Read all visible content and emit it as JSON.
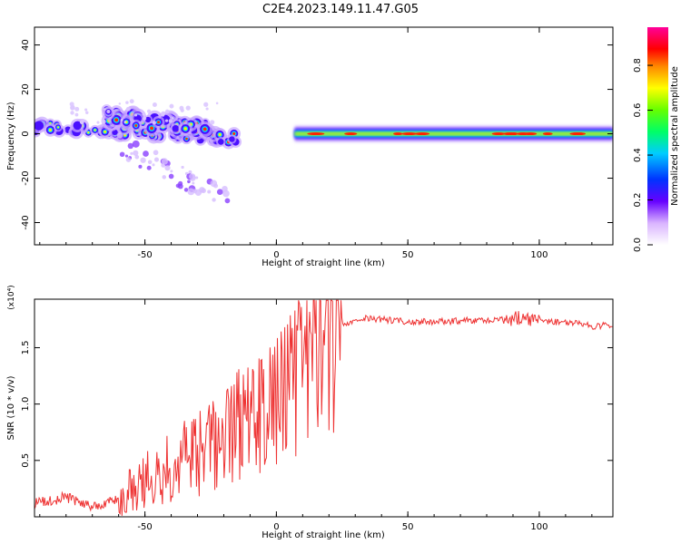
{
  "figure_title": "C2E4.2023.149.11.47.G05",
  "colors": {
    "snr_line": "#ee3333",
    "colormap": [
      "#ffffff",
      "#6600ff",
      "#0000ff",
      "#00ffff",
      "#00ff00",
      "#ffff00",
      "#ff8800",
      "#ff0000",
      "#ff0099"
    ]
  },
  "chart_data": [
    {
      "type": "heatmap",
      "title": "",
      "xlabel": "Height of straight line (km)",
      "ylabel": "Frequency (Hz)",
      "xlim": [
        -92,
        128
      ],
      "ylim": [
        -50,
        48
      ],
      "xticks": [
        -50,
        0,
        50,
        100
      ],
      "xtick_labels": [
        "-50",
        "0",
        "50",
        "100"
      ],
      "yticks": [
        -40,
        -20,
        0,
        20,
        40
      ],
      "ytick_labels": [
        "-40",
        "-20",
        "0",
        "20",
        "40"
      ],
      "colorbar": {
        "label": "Normalized spectral amplitude",
        "range": [
          0,
          0.97
        ],
        "ticks": [
          0.0,
          0.2,
          0.4,
          0.6,
          0.8
        ],
        "tick_labels": [
          "0.0",
          "0.2",
          "0.4",
          "0.6",
          "0.8"
        ]
      },
      "grid": false,
      "features": [
        {
          "name": "main-band",
          "x": [
            15,
            128
          ],
          "freq": 0,
          "amplitude": 0.8
        },
        {
          "name": "early-band",
          "x": [
            -92,
            -15
          ],
          "freq_start": 3,
          "freq_end": -2,
          "amplitude": 0.7
        },
        {
          "name": "upper-branch",
          "x": [
            -65,
            -25
          ],
          "freq_start": 8,
          "freq_end": 2,
          "amplitude": 0.75
        },
        {
          "name": "scatter-tail",
          "x": [
            -60,
            -18
          ],
          "freq_start": -5,
          "freq_end": -30,
          "amplitude": 0.25
        }
      ]
    },
    {
      "type": "line",
      "title": "",
      "xlabel": "Height of straight line (km)",
      "ylabel": "SNR (10 * v/v)",
      "y_multiplier": "(x10⁴)",
      "xlim": [
        -92,
        128
      ],
      "ylim": [
        0,
        1.93
      ],
      "xticks": [
        -50,
        0,
        50,
        100
      ],
      "xtick_labels": [
        "-50",
        "0",
        "50",
        "100"
      ],
      "yticks": [
        0.5,
        1.0,
        1.5
      ],
      "ytick_labels": [
        "0.5",
        "1.0",
        "1.5"
      ],
      "grid": false,
      "series": [
        {
          "x": [
            -92,
            -85,
            -80,
            -75,
            -70,
            -65,
            -60,
            -55,
            -50,
            -45,
            -40,
            -35,
            -30,
            -25,
            -20,
            -15,
            -10,
            -5,
            0,
            5,
            10,
            15,
            20,
            25,
            30,
            35,
            40,
            50,
            60,
            70,
            80,
            90,
            95,
            100,
            105,
            110,
            115,
            120,
            128
          ],
          "values": [
            0.12,
            0.14,
            0.18,
            0.12,
            0.1,
            0.12,
            0.15,
            0.25,
            0.32,
            0.4,
            0.45,
            0.5,
            0.55,
            0.62,
            0.7,
            0.8,
            0.9,
            0.95,
            1.0,
            1.15,
            1.3,
            1.5,
            1.62,
            1.7,
            1.74,
            1.76,
            1.75,
            1.73,
            1.73,
            1.74,
            1.74,
            1.76,
            1.75,
            1.74,
            1.73,
            1.72,
            1.71,
            1.69,
            1.7
          ]
        }
      ]
    }
  ]
}
